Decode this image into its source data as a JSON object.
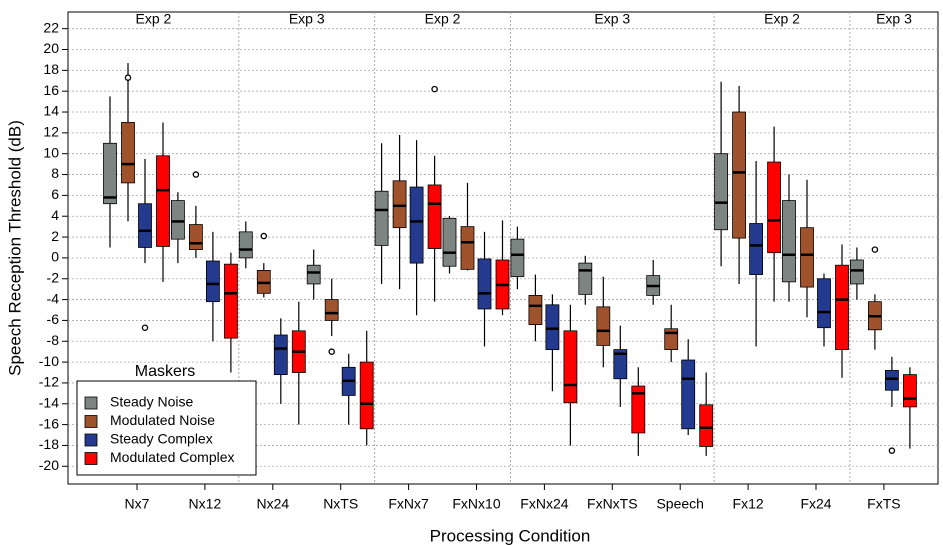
{
  "chart_data": {
    "type": "box",
    "x_label": "Processing Condition",
    "y_label": "Speech Reception Threshold (dB)",
    "categories": [
      "Nx7",
      "Nx12",
      "Nx24",
      "NxTS",
      "FxNx7",
      "FxNx10",
      "FxNx24",
      "FxNxTS",
      "Speech",
      "Fx12",
      "Fx24",
      "FxTS"
    ],
    "groups": [
      {
        "label": "Exp 2",
        "span": 2
      },
      {
        "label": "Exp 3",
        "span": 2
      },
      {
        "label": "Exp 2",
        "span": 2
      },
      {
        "label": "Exp 3",
        "span": 3
      },
      {
        "label": "Exp 2",
        "span": 2
      },
      {
        "label": "Exp 3",
        "span": 1
      }
    ],
    "ylim": [
      -21.7,
      23.6
    ],
    "yticks": [
      -20,
      -18,
      -16,
      -14,
      -12,
      -10,
      -8,
      -6,
      -4,
      -2,
      0,
      2,
      4,
      6,
      8,
      10,
      12,
      14,
      16,
      18,
      20,
      22
    ],
    "grid": true,
    "legend_title": "Maskers",
    "legend_position": "lower left",
    "series": [
      {
        "name": "Steady Noise",
        "color": "#7c8582",
        "min": [
          1,
          -0.5,
          -1,
          -4,
          -2.5,
          -1.5,
          -3,
          -4.5,
          -4.5,
          -0.8,
          -4.2,
          -4
        ],
        "q1": [
          5.2,
          1.8,
          0,
          -2.5,
          1.2,
          -0.8,
          -1.8,
          -3.5,
          -3.6,
          2.7,
          -2.3,
          -2.5
        ],
        "median": [
          5.8,
          3.5,
          0.8,
          -1.4,
          4.6,
          0.5,
          0.3,
          -1.2,
          -2.7,
          5.3,
          0.3,
          -1.2
        ],
        "q3": [
          11,
          5.5,
          2.5,
          -0.7,
          6.4,
          3.8,
          1.8,
          -0.5,
          -1.7,
          10,
          5.5,
          -0.2
        ],
        "max": [
          15.5,
          6.3,
          3.5,
          0.8,
          11,
          4,
          3,
          0.2,
          -0.2,
          16.9,
          8,
          1
        ],
        "outliers": [
          [],
          [],
          [],
          [],
          [],
          [],
          [],
          [],
          [],
          [],
          [],
          []
        ]
      },
      {
        "name": "Modulated Noise",
        "color": "#a0522d",
        "min": [
          3.5,
          0,
          -3.8,
          -7.5,
          -3,
          -1.2,
          -8,
          -10.5,
          -10,
          -2.5,
          -5.7,
          -8.8
        ],
        "q1": [
          7.2,
          0.8,
          -3.4,
          -6,
          2.9,
          -1.1,
          -6.4,
          -8.4,
          -8.8,
          1.9,
          -2.8,
          -6.9
        ],
        "median": [
          9,
          1.4,
          -2.4,
          -5.3,
          5,
          1.5,
          -4.6,
          -7,
          -7.2,
          8.2,
          0.3,
          -5.6
        ],
        "q3": [
          13,
          3.2,
          -1.2,
          -4,
          7.4,
          3,
          -3.6,
          -4.7,
          -6.8,
          14,
          2.9,
          -4.2
        ],
        "max": [
          18.7,
          5,
          -0.5,
          -2,
          11.8,
          7.2,
          -1.6,
          -1.8,
          -4.5,
          16.5,
          7.5,
          -3.5
        ],
        "outliers": [
          [
            17.3
          ],
          [
            8
          ],
          [
            2.1
          ],
          [
            -9
          ],
          [],
          [],
          [],
          [],
          [],
          [],
          [],
          [
            0.8
          ]
        ]
      },
      {
        "name": "Steady Complex",
        "color": "#233a8e",
        "min": [
          -0.5,
          -8,
          -14,
          -16,
          -5.5,
          -8.5,
          -12.8,
          -14.3,
          -17,
          -8.5,
          -8.5,
          -14.3
        ],
        "q1": [
          1,
          -4.2,
          -11.2,
          -13.2,
          -0.5,
          -4.9,
          -8.8,
          -11.6,
          -16.4,
          -1.6,
          -6.7,
          -12.7
        ],
        "median": [
          2.6,
          -2.5,
          -8.7,
          -11.8,
          3.5,
          -3.4,
          -6.8,
          -9.2,
          -11.6,
          1.2,
          -5.2,
          -11.6
        ],
        "q3": [
          5.2,
          -0.3,
          -7.4,
          -10.5,
          6.8,
          -0.1,
          -4.5,
          -8.8,
          -9.8,
          3.3,
          -2,
          -10.8
        ],
        "max": [
          9.5,
          2.5,
          -5.8,
          -9.2,
          11.3,
          2.5,
          -3.5,
          -6.5,
          -7.8,
          9.3,
          -1.5,
          -9.5
        ],
        "outliers": [
          [
            -6.7
          ],
          [],
          [],
          [],
          [],
          [],
          [],
          [],
          [],
          [],
          [],
          [
            -18.5
          ]
        ]
      },
      {
        "name": "Modulated Complex",
        "color": "#ff0000",
        "min": [
          -2.3,
          -11,
          -16,
          -18,
          -4.2,
          -5.5,
          -18,
          -19,
          -19,
          -4.2,
          -11.5,
          -18.3
        ],
        "q1": [
          1.1,
          -7.7,
          -11,
          -16.4,
          0.9,
          -4.9,
          -13.9,
          -16.8,
          -18.1,
          0.5,
          -8.8,
          -14.3
        ],
        "median": [
          6.5,
          -3.4,
          -9,
          -14,
          5.2,
          -2.6,
          -12.2,
          -13,
          -16.3,
          3.6,
          -4,
          -13.5
        ],
        "q3": [
          9.8,
          -0.6,
          -7,
          -10,
          7,
          -0.2,
          -7,
          -12.3,
          -14.1,
          9.2,
          -0.7,
          -11.2
        ],
        "max": [
          13,
          0.5,
          -4.2,
          -7,
          9.8,
          3.6,
          -4.5,
          -10.5,
          -11,
          12.6,
          1.3,
          -10.5
        ],
        "outliers": [
          [],
          [],
          [],
          [],
          [
            16.2
          ],
          [],
          [],
          [],
          [],
          [],
          [],
          []
        ]
      }
    ]
  }
}
